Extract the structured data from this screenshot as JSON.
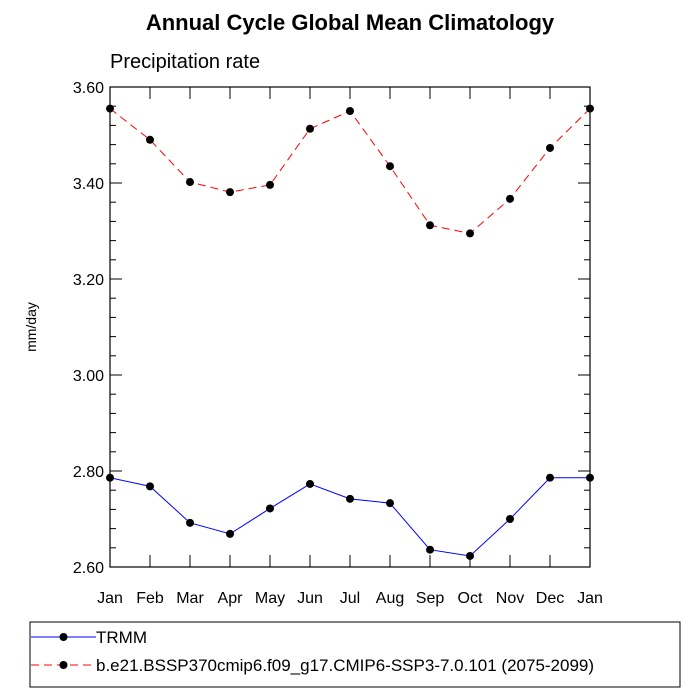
{
  "chart_data": {
    "type": "line",
    "title": "Annual Cycle Global Mean Climatology",
    "subtitle": "Precipitation rate",
    "xlabel": "",
    "ylabel": "mm/day",
    "categories": [
      "Jan",
      "Feb",
      "Mar",
      "Apr",
      "May",
      "Jun",
      "Jul",
      "Aug",
      "Sep",
      "Oct",
      "Nov",
      "Dec",
      "Jan"
    ],
    "yticks": [
      "2.60",
      "2.80",
      "3.00",
      "3.20",
      "3.40",
      "3.60"
    ],
    "ylim": [
      2.6,
      3.6
    ],
    "grid": false,
    "legend_position": "bottom-left",
    "series": [
      {
        "name": "TRMM",
        "color": "#0000ff",
        "dash": "solid",
        "values": [
          2.786,
          2.768,
          2.692,
          2.669,
          2.722,
          2.773,
          2.742,
          2.733,
          2.636,
          2.623,
          2.7,
          2.786,
          2.786
        ]
      },
      {
        "name": "b.e21.BSSP370cmip6.f09_g17.CMIP6-SSP3-7.0.101 (2075-2099)",
        "color": "#ff0000",
        "dash": "dashed",
        "values": [
          3.555,
          3.49,
          3.402,
          3.381,
          3.396,
          3.513,
          3.55,
          3.435,
          3.312,
          3.295,
          3.367,
          3.473,
          3.555
        ]
      }
    ]
  }
}
